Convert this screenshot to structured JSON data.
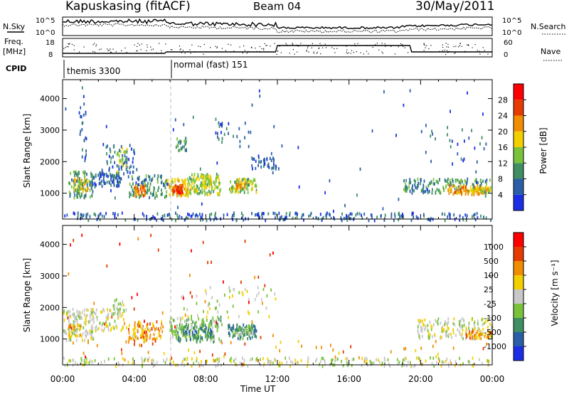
{
  "header": {
    "station": "Kapuskasing (fitACF)",
    "beam": "Beam 04",
    "date": "30/May/2011"
  },
  "top_panels": {
    "nsky_label": "N.Sky",
    "nsearch_label": "N.Search",
    "nsky_ticks": [
      "10^5",
      "10^0"
    ],
    "nsearch_ticks": [
      "10^5",
      "10^0"
    ],
    "freq_label": "Freq.",
    "freq_unit": "[MHz]",
    "freq_ticks": [
      "18",
      "8"
    ],
    "nave_label": "Nave",
    "nave_ticks": [
      "60",
      "0"
    ],
    "cpid_label": "CPID",
    "cpid_segments": [
      {
        "label": "themis 3300",
        "start_hour": 0
      },
      {
        "label": "normal (fast) 151",
        "start_hour": 6
      }
    ]
  },
  "chart_data": [
    {
      "type": "heatmap",
      "name": "power",
      "xlabel": "",
      "ylabel": "Slant Range [km]",
      "x_ticks": [
        "00:00",
        "04:00",
        "08:00",
        "12:00",
        "16:00",
        "20:00",
        "00:00"
      ],
      "x_tick_hours": [
        0,
        4,
        8,
        12,
        16,
        20,
        24
      ],
      "xlim": [
        0,
        24
      ],
      "y_ticks": [
        1000,
        2000,
        3000,
        4000
      ],
      "ylim": [
        180,
        4600
      ],
      "colorbar_label": "Power [dB]",
      "colorbar_ticks": [
        4,
        8,
        12,
        16,
        20,
        24,
        28
      ],
      "colorbar_colors": [
        "#1b2ee6",
        "#2a5fa8",
        "#3f8f63",
        "#79c33a",
        "#f2d000",
        "#f08d00",
        "#e53a00",
        "#ff0000"
      ],
      "clusters": [
        {
          "h0": 0.3,
          "h1": 1.7,
          "r0": 900,
          "r1": 1750,
          "n": 90,
          "lv": 2
        },
        {
          "h0": 0.6,
          "h1": 1.4,
          "r0": 1100,
          "r1": 1500,
          "n": 40,
          "lv": 4
        },
        {
          "h0": 0.9,
          "h1": 1.3,
          "r0": 2000,
          "r1": 4200,
          "n": 25,
          "lv": 1
        },
        {
          "h0": 1.6,
          "h1": 3.2,
          "r0": 1250,
          "r1": 1700,
          "n": 70,
          "lv": 1
        },
        {
          "h0": 2.4,
          "h1": 4.0,
          "r0": 1500,
          "r1": 2600,
          "n": 70,
          "lv": 1
        },
        {
          "h0": 3.0,
          "h1": 3.6,
          "r0": 1700,
          "r1": 2500,
          "n": 25,
          "lv": 3
        },
        {
          "h0": 3.7,
          "h1": 5.8,
          "r0": 900,
          "r1": 1600,
          "n": 100,
          "lv": 2
        },
        {
          "h0": 4.0,
          "h1": 4.6,
          "r0": 950,
          "r1": 1300,
          "n": 40,
          "lv": 5
        },
        {
          "h0": 5.8,
          "h1": 7.0,
          "r0": 950,
          "r1": 1500,
          "n": 80,
          "lv": 4
        },
        {
          "h0": 6.1,
          "h1": 6.7,
          "r0": 1050,
          "r1": 1300,
          "n": 40,
          "lv": 6
        },
        {
          "h0": 6.3,
          "h1": 6.9,
          "r0": 2400,
          "r1": 2800,
          "n": 25,
          "lv": 2
        },
        {
          "h0": 7.0,
          "h1": 8.8,
          "r0": 1000,
          "r1": 1650,
          "n": 120,
          "lv": 3
        },
        {
          "h0": 7.7,
          "h1": 8.3,
          "r0": 1200,
          "r1": 1600,
          "n": 40,
          "lv": 4
        },
        {
          "h0": 9.3,
          "h1": 10.8,
          "r0": 1050,
          "r1": 1500,
          "n": 80,
          "lv": 3
        },
        {
          "h0": 9.6,
          "h1": 10.2,
          "r0": 1200,
          "r1": 1400,
          "n": 25,
          "lv": 5
        },
        {
          "h0": 10.5,
          "h1": 11.9,
          "r0": 1800,
          "r1": 2200,
          "n": 40,
          "lv": 1
        },
        {
          "h0": 8.5,
          "h1": 10.5,
          "r0": 2500,
          "r1": 3300,
          "n": 25,
          "lv": 1
        },
        {
          "h0": 19.0,
          "h1": 23.9,
          "r0": 1050,
          "r1": 1500,
          "n": 160,
          "lv": 2
        },
        {
          "h0": 21.5,
          "h1": 23.5,
          "r0": 1000,
          "r1": 1300,
          "n": 70,
          "lv": 5
        },
        {
          "h0": 22.8,
          "h1": 23.9,
          "r0": 1050,
          "r1": 1250,
          "n": 40,
          "lv": 4
        },
        {
          "h0": 20.0,
          "h1": 23.9,
          "r0": 2000,
          "r1": 3200,
          "n": 25,
          "lv": 1
        },
        {
          "h0": 0.0,
          "h1": 24.0,
          "r0": 180,
          "r1": 420,
          "n": 260,
          "lv": 1
        },
        {
          "h0": 0.0,
          "h1": 24.0,
          "r0": 400,
          "r1": 4400,
          "n": 60,
          "lv": 1
        }
      ]
    },
    {
      "type": "heatmap",
      "name": "velocity",
      "xlabel": "Time UT",
      "ylabel": "Slant Range [km]",
      "x_ticks": [
        "00:00",
        "04:00",
        "08:00",
        "12:00",
        "16:00",
        "20:00",
        "00:00"
      ],
      "x_tick_hours": [
        0,
        4,
        8,
        12,
        16,
        20,
        24
      ],
      "xlim": [
        0,
        24
      ],
      "y_ticks": [
        1000,
        2000,
        3000,
        4000
      ],
      "ylim": [
        180,
        4600
      ],
      "colorbar_label": "Velocity [m s⁻¹]",
      "colorbar_ticks": [
        "1000",
        "500",
        "100",
        "25",
        "-25",
        "-100",
        "-500",
        "-1000"
      ],
      "colorbar_colors": [
        "#1b2ee6",
        "#2a5fa8",
        "#3f8f63",
        "#79c33a",
        "#c8c8c8",
        "#f2d000",
        "#f08d00",
        "#e53a00",
        "#ff0000"
      ],
      "clusters": [
        {
          "h0": 0.0,
          "h1": 1.7,
          "r0": 1000,
          "r1": 2000,
          "n": 130,
          "lv": 4
        },
        {
          "h0": 0.3,
          "h1": 1.0,
          "r0": 1100,
          "r1": 1500,
          "n": 20,
          "lv": 6
        },
        {
          "h0": 1.6,
          "h1": 3.4,
          "r0": 1300,
          "r1": 2000,
          "n": 70,
          "lv": 4
        },
        {
          "h0": 3.5,
          "h1": 5.6,
          "r0": 950,
          "r1": 1600,
          "n": 70,
          "lv": 6
        },
        {
          "h0": 3.8,
          "h1": 5.0,
          "r0": 1000,
          "r1": 1450,
          "n": 30,
          "lv": 5
        },
        {
          "h0": 2.8,
          "h1": 3.6,
          "r0": 1800,
          "r1": 2300,
          "n": 25,
          "lv": 4
        },
        {
          "h0": 5.9,
          "h1": 8.9,
          "r0": 950,
          "r1": 1750,
          "n": 150,
          "lv": 3
        },
        {
          "h0": 6.4,
          "h1": 8.4,
          "r0": 1000,
          "r1": 1500,
          "n": 80,
          "lv": 2
        },
        {
          "h0": 9.2,
          "h1": 10.8,
          "r0": 1050,
          "r1": 1500,
          "n": 90,
          "lv": 2
        },
        {
          "h0": 9.6,
          "h1": 10.6,
          "r0": 1150,
          "r1": 1400,
          "n": 30,
          "lv": 3
        },
        {
          "h0": 6.5,
          "h1": 11.9,
          "r0": 1700,
          "r1": 2700,
          "n": 60,
          "lv": 4
        },
        {
          "h0": 19.8,
          "h1": 24.0,
          "r0": 1050,
          "r1": 1700,
          "n": 160,
          "lv": 4
        },
        {
          "h0": 22.5,
          "h1": 24.0,
          "r0": 1050,
          "r1": 1300,
          "n": 40,
          "lv": 6
        },
        {
          "h0": 0.0,
          "h1": 24.0,
          "r0": 180,
          "r1": 450,
          "n": 260,
          "lv": 4
        },
        {
          "h0": 0.0,
          "h1": 24.0,
          "r0": 180,
          "r1": 1000,
          "n": 60,
          "lv": 6
        },
        {
          "h0": 0.0,
          "h1": 12.0,
          "r0": 400,
          "r1": 4400,
          "n": 50,
          "lv": 7
        }
      ]
    }
  ]
}
